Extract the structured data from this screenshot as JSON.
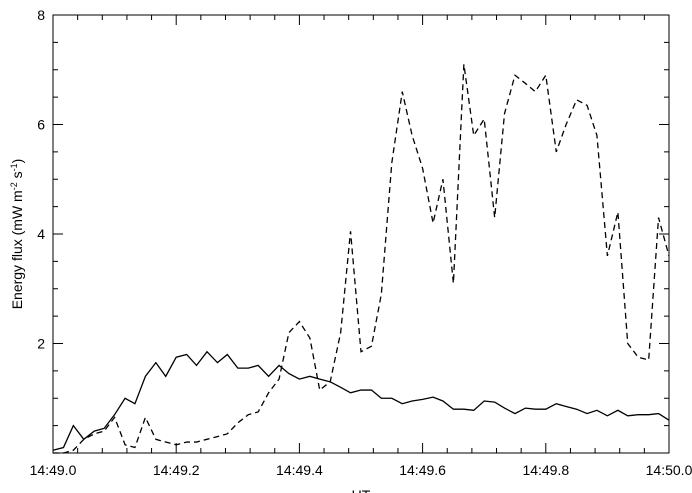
{
  "chart_data": {
    "type": "line",
    "ylabel": [
      "Energy flux (mW m",
      "-2",
      " s",
      "-1",
      ")"
    ],
    "xlabel": "UT",
    "x": [
      0,
      0.017,
      0.033,
      0.05,
      0.067,
      0.083,
      0.1,
      0.117,
      0.133,
      0.15,
      0.167,
      0.183,
      0.2,
      0.217,
      0.233,
      0.25,
      0.267,
      0.283,
      0.3,
      0.317,
      0.333,
      0.35,
      0.367,
      0.383,
      0.4,
      0.417,
      0.433,
      0.45,
      0.467,
      0.483,
      0.5,
      0.517,
      0.533,
      0.55,
      0.567,
      0.583,
      0.6,
      0.617,
      0.633,
      0.65,
      0.667,
      0.683,
      0.7,
      0.717,
      0.733,
      0.75,
      0.767,
      0.783,
      0.8,
      0.817,
      0.833,
      0.85,
      0.867,
      0.883,
      0.9,
      0.917,
      0.933,
      0.95,
      0.967,
      0.983,
      1.0
    ],
    "series": [
      {
        "color": "#000000",
        "dash": false,
        "values": [
          0.05,
          0.1,
          0.5,
          0.25,
          0.4,
          0.45,
          0.7,
          1.0,
          0.9,
          1.4,
          1.65,
          1.4,
          1.75,
          1.8,
          1.6,
          1.85,
          1.65,
          1.8,
          1.55,
          1.55,
          1.6,
          1.4,
          1.6,
          1.45,
          1.35,
          1.4,
          1.35,
          1.3,
          1.2,
          1.1,
          1.15,
          1.15,
          1.0,
          1.0,
          0.9,
          0.95,
          0.98,
          1.02,
          0.95,
          0.8,
          0.8,
          0.78,
          0.95,
          0.93,
          0.82,
          0.72,
          0.82,
          0.8,
          0.8,
          0.9,
          0.85,
          0.8,
          0.72,
          0.78,
          0.68,
          0.78,
          0.68,
          0.7,
          0.7,
          0.72,
          0.6
        ]
      },
      {
        "color": "#000000",
        "dash": true,
        "values": [
          0.0,
          0.0,
          0.05,
          0.25,
          0.35,
          0.4,
          0.65,
          0.15,
          0.1,
          0.65,
          0.25,
          0.2,
          0.15,
          0.2,
          0.2,
          0.25,
          0.3,
          0.35,
          0.55,
          0.7,
          0.75,
          1.1,
          1.35,
          2.2,
          2.4,
          2.1,
          1.15,
          1.3,
          2.2,
          4.05,
          1.85,
          1.95,
          2.9,
          5.3,
          6.6,
          5.8,
          5.2,
          4.2,
          5.0,
          3.1,
          7.1,
          5.8,
          6.1,
          4.3,
          6.2,
          6.9,
          6.75,
          6.6,
          6.9,
          5.5,
          6.0,
          6.45,
          6.35,
          5.8,
          3.6,
          4.4,
          2.0,
          1.75,
          1.7,
          4.3,
          3.6
        ]
      }
    ],
    "xlim": [
      0,
      1
    ],
    "xticks": [
      {
        "value": 0,
        "label": "14:49.0"
      },
      {
        "value": 0.2,
        "label": "14:49.2"
      },
      {
        "value": 0.4,
        "label": "14:49.4"
      },
      {
        "value": 0.6,
        "label": "14:49.6"
      },
      {
        "value": 0.8,
        "label": "14:49.8"
      },
      {
        "value": 1.0,
        "label": "14:50.0"
      }
    ],
    "ylim": [
      0,
      8
    ],
    "yticks": [
      2,
      4,
      6,
      8
    ],
    "grid": false
  }
}
